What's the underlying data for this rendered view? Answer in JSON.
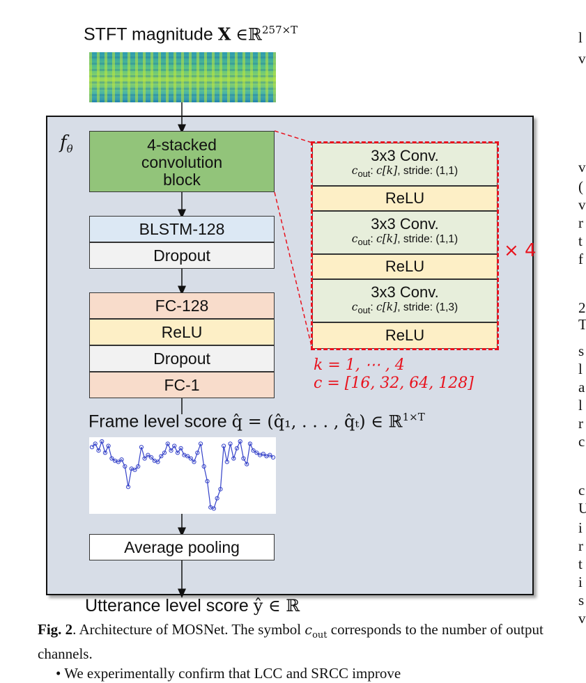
{
  "input": {
    "label": "STFT magnitude",
    "var": "X",
    "in": "∈",
    "space": "ℝ",
    "dims": "257×T"
  },
  "frame": {
    "symbol": "f",
    "symbol_sub": "θ"
  },
  "main_blocks": {
    "conv": [
      "4-stacked",
      "convolution",
      "block"
    ],
    "blstm": "BLSTM-128",
    "dropout1": "Dropout",
    "fc128": "FC-128",
    "relu": "ReLU",
    "dropout2": "Dropout",
    "fc1": "FC-1",
    "avgpool": "Average pooling"
  },
  "frame_score": {
    "label": "Frame level score",
    "expr": "q̂ = (q̂₁, . . . , q̂ₜ) ∈ ℝ",
    "dims": "1×T",
    "values": [
      0.55,
      0.58,
      0.52,
      0.6,
      0.5,
      0.56,
      0.45,
      0.43,
      0.42,
      0.44,
      0.38,
      0.2,
      0.36,
      0.35,
      0.38,
      0.55,
      0.45,
      0.48,
      0.46,
      0.43,
      0.42,
      0.47,
      0.5,
      0.58,
      0.52,
      0.56,
      0.5,
      0.54,
      0.48,
      0.47,
      0.45,
      0.42,
      0.5,
      0.58,
      0.38,
      0.25,
      0.02,
      0.01,
      0.1,
      0.18,
      0.56,
      0.42,
      0.58,
      0.45,
      0.54,
      0.6,
      0.45,
      0.4,
      0.58,
      0.52,
      0.5,
      0.48,
      0.49,
      0.47,
      0.48,
      0.46
    ]
  },
  "detail": {
    "layers": [
      {
        "type": "conv",
        "title": "3x3 Conv.",
        "cout": "out",
        "cvar": "c[k]",
        "stride_label": ", stride:",
        "stride": "(1,1)"
      },
      {
        "type": "relu",
        "title": "ReLU"
      },
      {
        "type": "conv",
        "title": "3x3 Conv.",
        "cout": "out",
        "cvar": "c[k]",
        "stride_label": ", stride:",
        "stride": "(1,1)"
      },
      {
        "type": "relu",
        "title": "ReLU"
      },
      {
        "type": "conv",
        "title": "3x3 Conv.",
        "cout": "out",
        "cvar": "c[k]",
        "stride_label": ", stride:",
        "stride": "(1,3)"
      },
      {
        "type": "relu",
        "title": "ReLU"
      }
    ],
    "repeat": "× 4",
    "k_range": "k = 1, ⋯ , 4",
    "c_list": "c = [16, 32, 64, 128]"
  },
  "output": {
    "label": "Utterance level score",
    "expr": "ŷ ∈ ℝ"
  },
  "caption": {
    "fig": "Fig. 2",
    "text_a": ". Architecture of MOSNet. The symbol ",
    "symbol": "c",
    "symbol_sub": "out",
    "text_b": " corresponds to the number of output channels."
  },
  "bullet": "• We experimentally confirm that LCC and SRCC improve",
  "right_column": [
    "l",
    "v",
    "v",
    "(",
    "v",
    "r",
    "t",
    "f",
    "2",
    "T",
    "s",
    "l",
    "a",
    "l",
    "r",
    "c",
    "c",
    "U",
    "i",
    "r",
    "t",
    "i",
    "s",
    "v"
  ],
  "colors": {
    "accent_red": "#e8121d",
    "conv_green": "#92c47a",
    "relu_yellow": "#fdefc6",
    "fc_peach": "#f8dccb",
    "blstm_blue": "#dce8f4",
    "frame_bg": "#d7dde7",
    "plot_blue": "#3340c8"
  }
}
